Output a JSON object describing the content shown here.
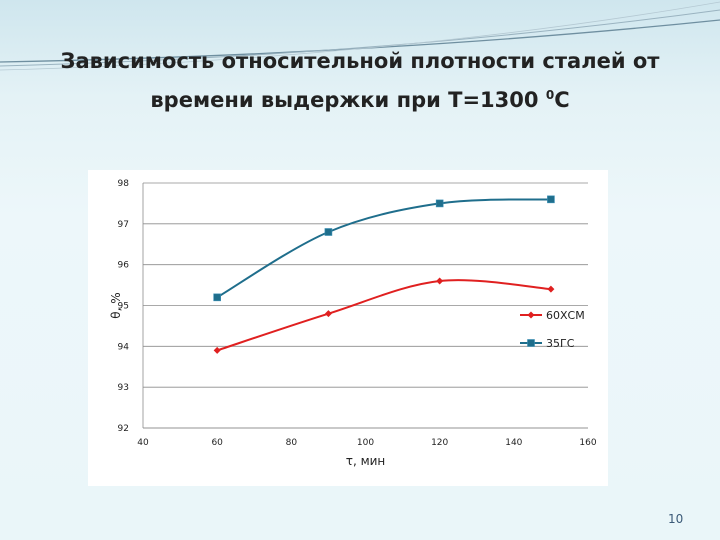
{
  "slide": {
    "title_line1": "Зависимость относительной плотности сталей от",
    "title_line2_prefix": "времени выдержки при T=1300 ",
    "title_superscript": "0",
    "title_line2_suffix": "C",
    "page_number": "10"
  },
  "chart_data": {
    "type": "line",
    "xlabel": "τ, мин",
    "ylabel": "θ, %",
    "xlim": [
      40,
      160
    ],
    "ylim": [
      92,
      98
    ],
    "x_ticks": [
      40,
      60,
      80,
      100,
      120,
      140,
      160
    ],
    "y_ticks": [
      92,
      93,
      94,
      95,
      96,
      97,
      98
    ],
    "grid": "horizontal",
    "legend": "right",
    "series": [
      {
        "name": "60ХСМ",
        "color": "#e02020",
        "marker": "diamond",
        "x": [
          60,
          90,
          120,
          150
        ],
        "values": [
          93.9,
          94.8,
          95.6,
          95.4
        ]
      },
      {
        "name": "35ГС",
        "color": "#1f6e8c",
        "marker": "square",
        "x": [
          60,
          90,
          120,
          150
        ],
        "values": [
          95.2,
          96.8,
          97.5,
          97.6
        ]
      }
    ]
  }
}
